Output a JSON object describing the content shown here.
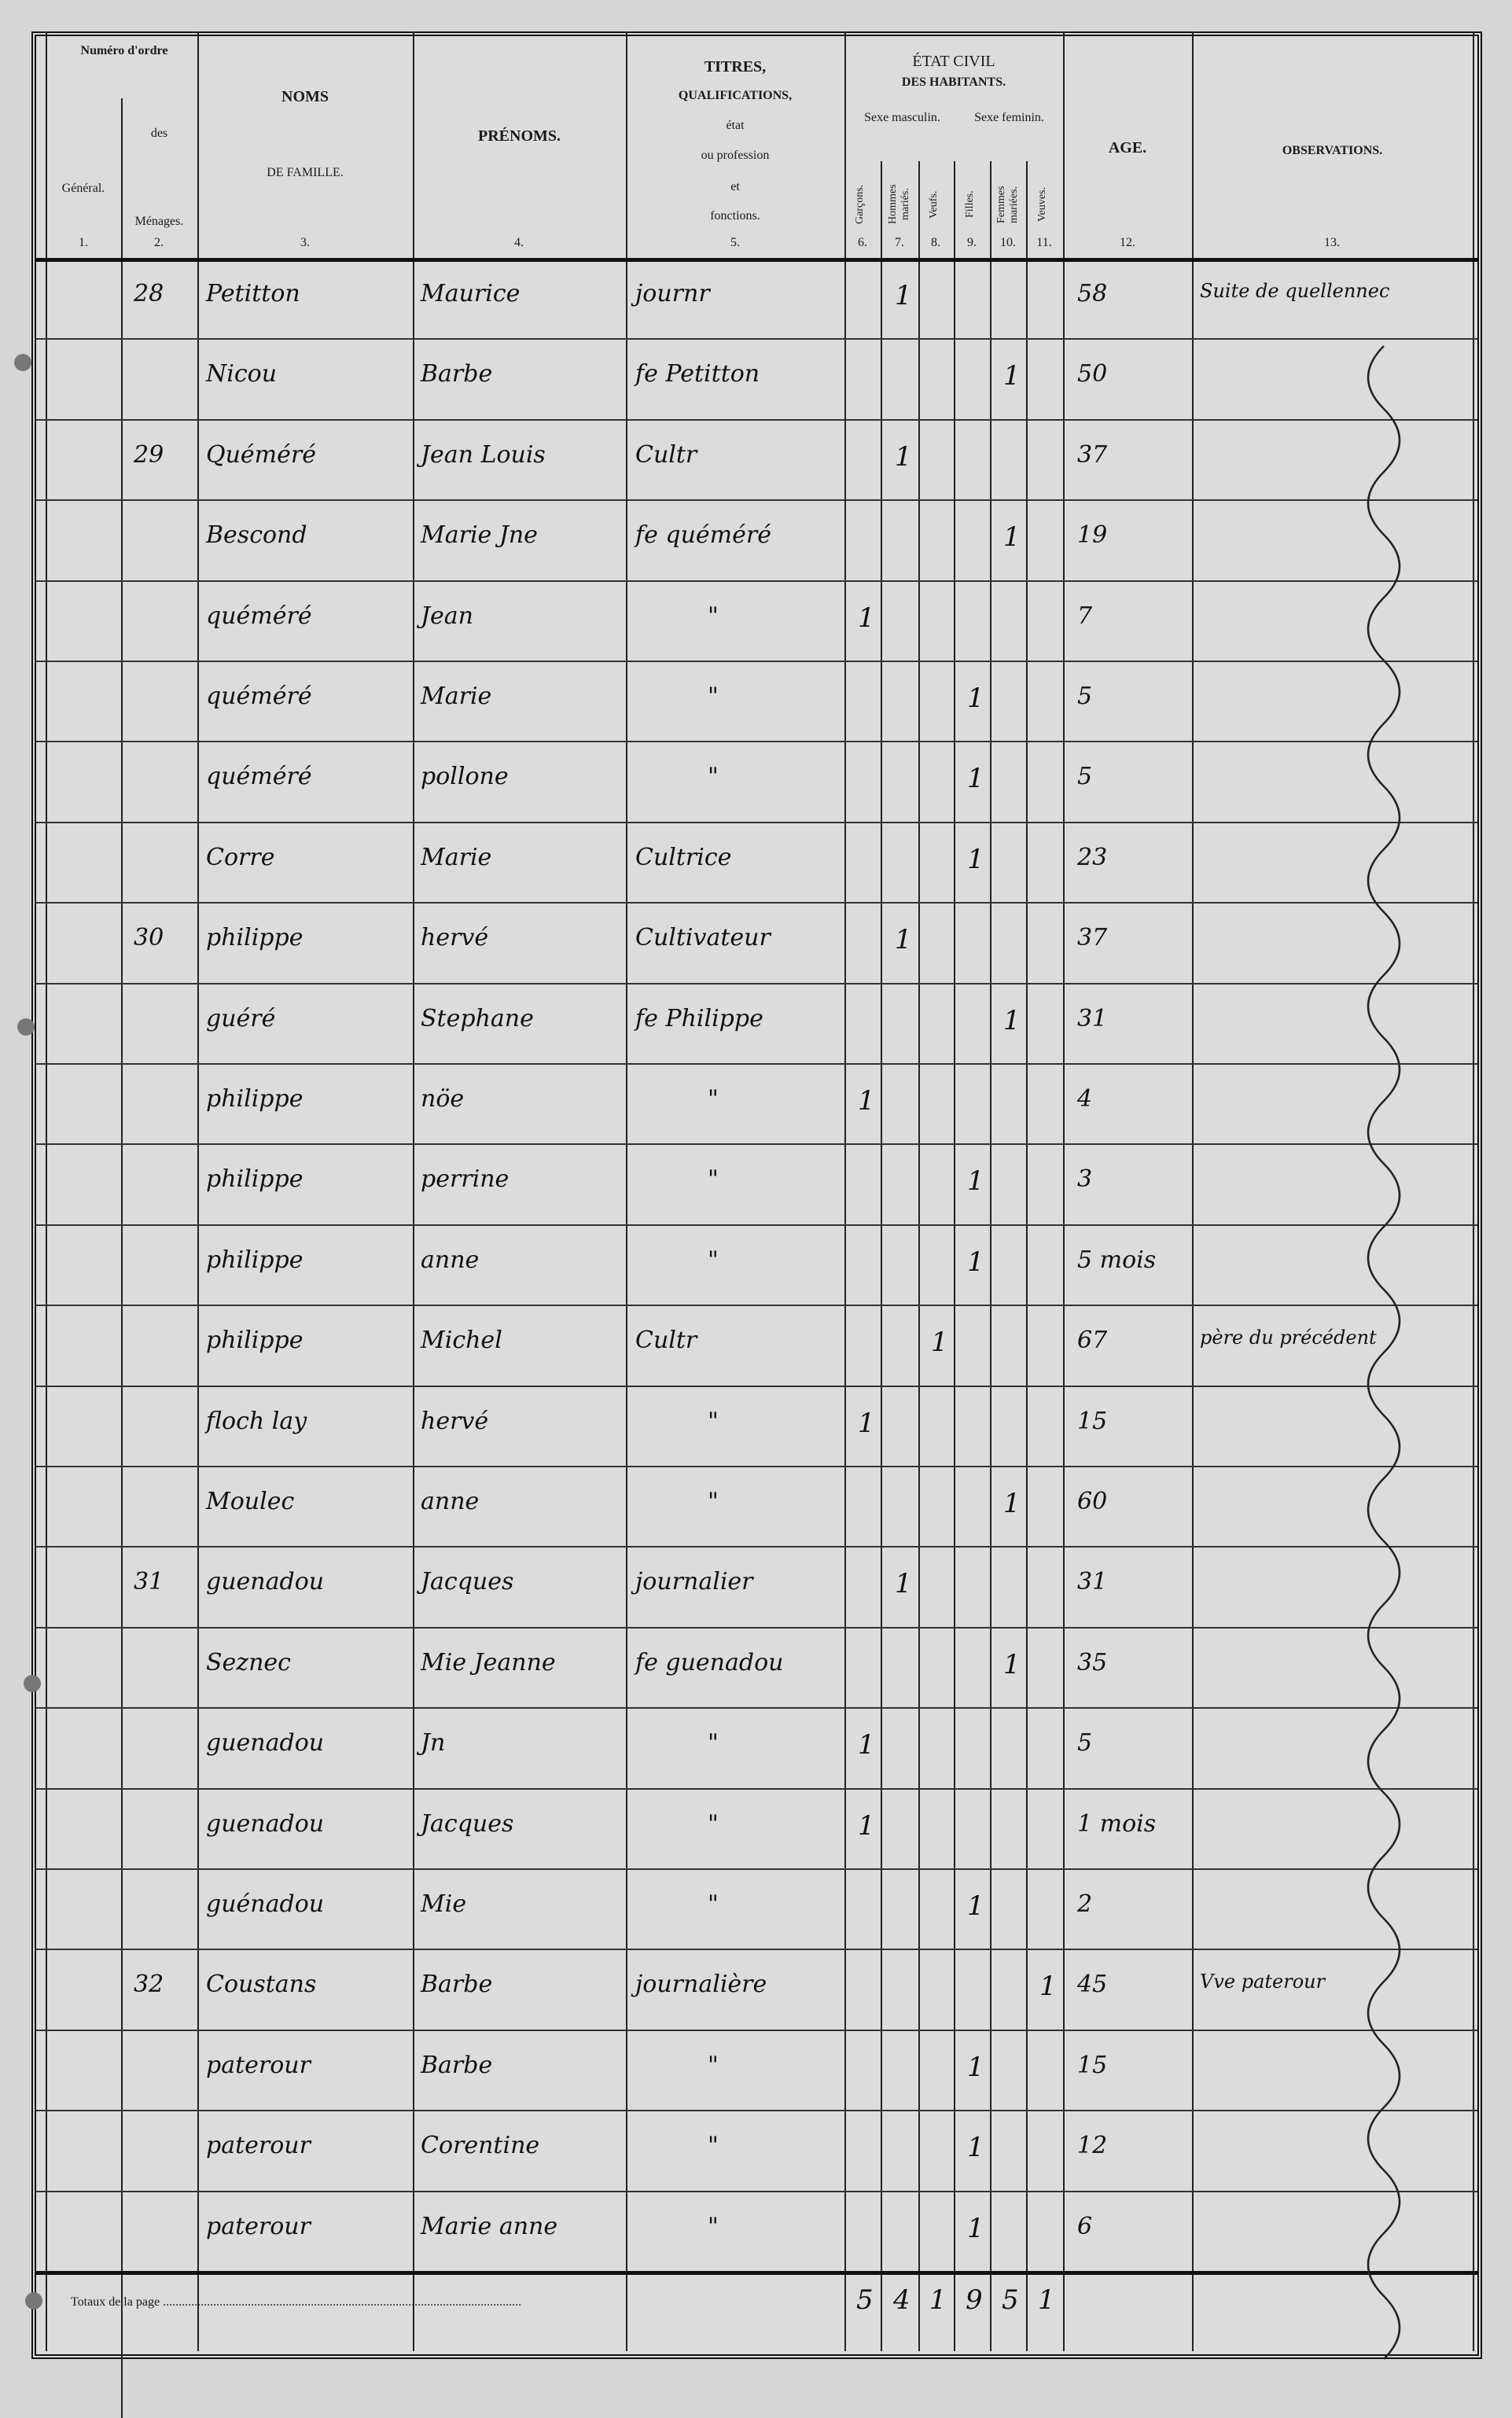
{
  "header": {
    "numero_ordre": "Numéro d'ordre",
    "general": "Général.",
    "menages_des": "des",
    "menages": "Ménages.",
    "noms": "NOMS",
    "de_famille": "DE FAMILLE.",
    "prenoms": "PRÉNOMS.",
    "titres": "TITRES,",
    "qualifications": "QUALIFICATIONS,",
    "etat": "état",
    "ou_profession": "ou profession",
    "et": "et",
    "fonctions": "fonctions.",
    "etat_civil": "ÉTAT CIVIL",
    "des_habitants": "DES HABITANTS.",
    "sexe_masculin": "Sexe masculin.",
    "sexe_feminin": "Sexe feminin.",
    "garcons": "Garçons.",
    "hommes_maries": "Hommes mariés.",
    "veufs": "Veufs.",
    "filles": "Filles.",
    "femmes_mariees": "Femmes mariées.",
    "veuves": "Veuves.",
    "age": "AGE.",
    "observations": "OBSERVATIONS.",
    "col_numbers": [
      "1.",
      "2.",
      "3.",
      "4.",
      "5.",
      "6.",
      "7.",
      "8.",
      "9.",
      "10.",
      "11.",
      "12.",
      "13."
    ]
  },
  "rows": [
    {
      "menage": "28",
      "nom": "Petitton",
      "prenom": "Maurice",
      "titre": "journr",
      "col": 7,
      "age": "58",
      "obs": "Suite de quellennec"
    },
    {
      "menage": "",
      "nom": "Nicou",
      "prenom": "Barbe",
      "titre": "fe Petitton",
      "col": 10,
      "age": "50",
      "obs": ""
    },
    {
      "menage": "29",
      "nom": "Quéméré",
      "prenom": "Jean Louis",
      "titre": "Cultr",
      "col": 7,
      "age": "37",
      "obs": ""
    },
    {
      "menage": "",
      "nom": "Bescond",
      "prenom": "Marie Jne",
      "titre": "fe quéméré",
      "col": 10,
      "age": "19",
      "obs": ""
    },
    {
      "menage": "",
      "nom": "quéméré",
      "prenom": "Jean",
      "titre": "\"",
      "col": 6,
      "age": "7",
      "obs": ""
    },
    {
      "menage": "",
      "nom": "quéméré",
      "prenom": "Marie",
      "titre": "\"",
      "col": 9,
      "age": "5",
      "obs": ""
    },
    {
      "menage": "",
      "nom": "quéméré",
      "prenom": "pollone",
      "titre": "\"",
      "col": 9,
      "age": "5",
      "obs": ""
    },
    {
      "menage": "",
      "nom": "Corre",
      "prenom": "Marie",
      "titre": "Cultrice",
      "col": 9,
      "age": "23",
      "obs": ""
    },
    {
      "menage": "30",
      "nom": "philippe",
      "prenom": "hervé",
      "titre": "Cultivateur",
      "col": 7,
      "age": "37",
      "obs": ""
    },
    {
      "menage": "",
      "nom": "guéré",
      "prenom": "Stephane",
      "titre": "fe Philippe",
      "col": 10,
      "age": "31",
      "obs": ""
    },
    {
      "menage": "",
      "nom": "philippe",
      "prenom": "nöe",
      "titre": "\"",
      "col": 6,
      "age": "4",
      "obs": ""
    },
    {
      "menage": "",
      "nom": "philippe",
      "prenom": "perrine",
      "titre": "\"",
      "col": 9,
      "age": "3",
      "obs": ""
    },
    {
      "menage": "",
      "nom": "philippe",
      "prenom": "anne",
      "titre": "\"",
      "col": 9,
      "age": "5 mois",
      "obs": ""
    },
    {
      "menage": "",
      "nom": "philippe",
      "prenom": "Michel",
      "titre": "Cultr",
      "col": 8,
      "age": "67",
      "obs": "père du précédent"
    },
    {
      "menage": "",
      "nom": "floch lay",
      "prenom": "hervé",
      "titre": "\"",
      "col": 6,
      "age": "15",
      "obs": ""
    },
    {
      "menage": "",
      "nom": "Moulec",
      "prenom": "anne",
      "titre": "\"",
      "col": 10,
      "age": "60",
      "obs": ""
    },
    {
      "menage": "31",
      "nom": "guenadou",
      "prenom": "Jacques",
      "titre": "journalier",
      "col": 7,
      "age": "31",
      "obs": ""
    },
    {
      "menage": "",
      "nom": "Seznec",
      "prenom": "Mie Jeanne",
      "titre": "fe guenadou",
      "col": 10,
      "age": "35",
      "obs": ""
    },
    {
      "menage": "",
      "nom": "guenadou",
      "prenom": "Jn",
      "titre": "\"",
      "col": 6,
      "age": "5",
      "obs": ""
    },
    {
      "menage": "",
      "nom": "guenadou",
      "prenom": "Jacques",
      "titre": "\"",
      "col": 6,
      "age": "1 mois",
      "obs": ""
    },
    {
      "menage": "",
      "nom": "guénadou",
      "prenom": "Mie",
      "titre": "\"",
      "col": 9,
      "age": "2",
      "obs": ""
    },
    {
      "menage": "32",
      "nom": "Coustans",
      "prenom": "Barbe",
      "titre": "journalière",
      "col": 11,
      "age": "45",
      "obs": "Vve paterour"
    },
    {
      "menage": "",
      "nom": "paterour",
      "prenom": "Barbe",
      "titre": "\"",
      "col": 9,
      "age": "15",
      "obs": ""
    },
    {
      "menage": "",
      "nom": "paterour",
      "prenom": "Corentine",
      "titre": "\"",
      "col": 9,
      "age": "12",
      "obs": ""
    },
    {
      "menage": "",
      "nom": "paterour",
      "prenom": "Marie anne",
      "titre": "\"",
      "col": 9,
      "age": "6",
      "obs": ""
    }
  ],
  "totals": {
    "label": "Totaux de la page",
    "values": [
      "5",
      "4",
      "1",
      "9",
      "5",
      "1"
    ]
  }
}
